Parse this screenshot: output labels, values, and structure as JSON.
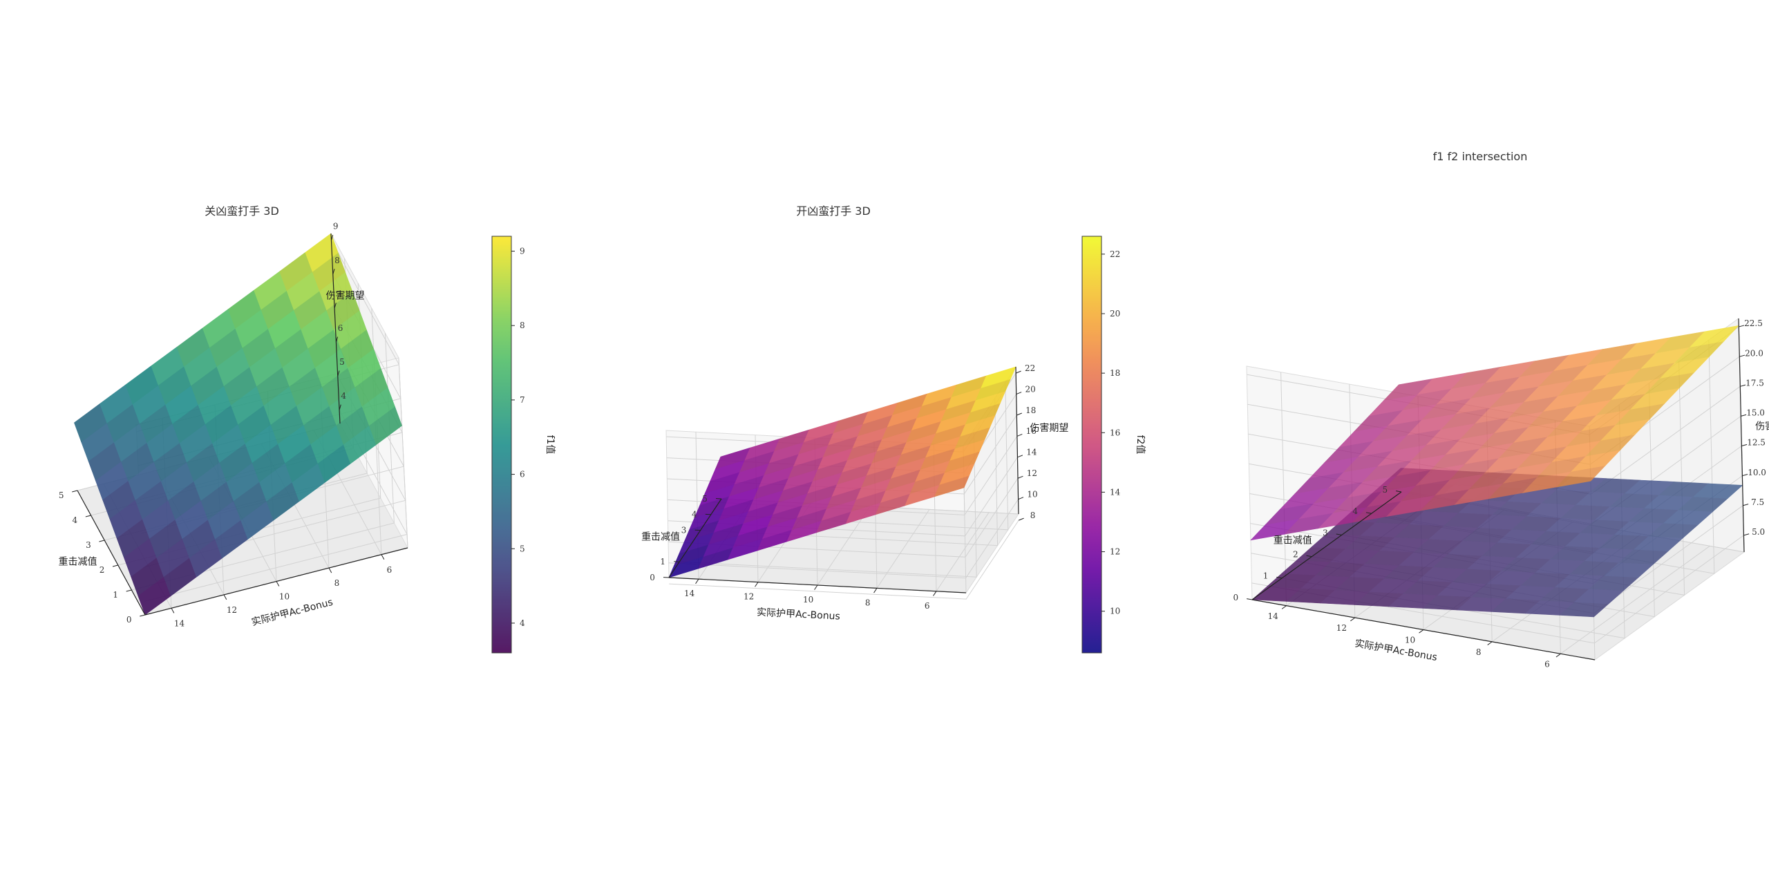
{
  "chart_data": [
    {
      "type": "surface3d",
      "title": "关凶蛮打手 3D",
      "xlabel": "实际护甲Ac-Bonus",
      "ylabel": "重击减值",
      "zlabel": "伤害期望",
      "x_ticks": [
        "14",
        "12",
        "10",
        "8",
        "6"
      ],
      "y_ticks": [
        "0",
        "1",
        "2",
        "3",
        "4",
        "5"
      ],
      "z_ticks": [
        "4",
        "5",
        "6",
        "7",
        "8",
        "9"
      ],
      "x_range": [
        5,
        15
      ],
      "y_range": [
        0,
        5
      ],
      "z_range": [
        3.6,
        9.2
      ],
      "colormap": "viridis",
      "colorbar_label": "f1值",
      "colorbar_ticks": [
        "4",
        "5",
        "6",
        "7",
        "8",
        "9"
      ],
      "colorbar_range": [
        3.6,
        9.2
      ],
      "surface_corners": {
        "x15_y0": 3.6,
        "x15_y5": 5.6,
        "x5_y0": 7.2,
        "x5_y5": 9.2
      }
    },
    {
      "type": "surface3d",
      "title": "开凶蛮打手 3D",
      "xlabel": "实际护甲Ac-Bonus",
      "ylabel": "重击减值",
      "zlabel": "伤害期望",
      "x_ticks": [
        "14",
        "12",
        "10",
        "8",
        "6"
      ],
      "y_ticks": [
        "0",
        "1",
        "3",
        "4",
        "5"
      ],
      "z_ticks": [
        "8",
        "10",
        "12",
        "14",
        "16",
        "18",
        "20",
        "22"
      ],
      "x_range": [
        5,
        15
      ],
      "y_range": [
        0,
        5
      ],
      "z_range": [
        8.6,
        22.6
      ],
      "colormap": "plasma",
      "colorbar_label": "f2值",
      "colorbar_ticks": [
        "10",
        "12",
        "14",
        "16",
        "18",
        "20",
        "22"
      ],
      "colorbar_range": [
        8.6,
        22.6
      ],
      "surface_corners": {
        "x15_y0": 8.6,
        "x15_y5": 12.6,
        "x5_y0": 18.6,
        "x5_y5": 22.6
      }
    },
    {
      "type": "surface3d",
      "title": "f1 f2 intersection",
      "xlabel": "实际护甲Ac-Bonus",
      "ylabel": "重击减值",
      "zlabel": "伤害期望",
      "x_ticks": [
        "14",
        "12",
        "10",
        "8",
        "6"
      ],
      "y_ticks": [
        "0",
        "1",
        "2",
        "3",
        "4",
        "5"
      ],
      "z_ticks": [
        "5.0",
        "7.5",
        "10.0",
        "12.5",
        "15.0",
        "17.5",
        "20.0",
        "22.5"
      ],
      "x_range": [
        5,
        15
      ],
      "y_range": [
        0,
        5
      ],
      "z_range": [
        3.6,
        23.2
      ],
      "series": [
        {
          "name": "",
          "colormap": "viridis",
          "corners": {
            "x15_y0": 3.6,
            "x15_y5": 5.6,
            "x5_y0": 7.2,
            "x5_y5": 9.2
          }
        },
        {
          "name": "",
          "colormap": "plasma",
          "corners": {
            "x15_y0": 8.6,
            "x15_y5": 12.6,
            "x5_y0": 18.6,
            "x5_y5": 22.6
          }
        }
      ]
    }
  ]
}
